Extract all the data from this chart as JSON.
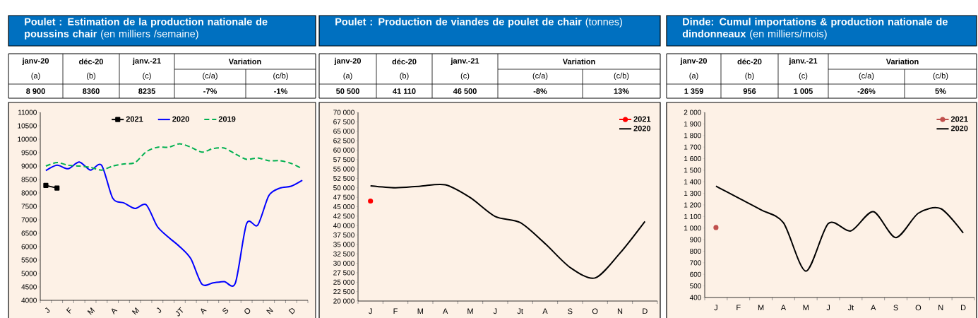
{
  "chart_data": [
    {
      "type": "line",
      "title": "**Poulet : Estimation de la production nationale de poussins chair** (en milliers /semaine)",
      "annotations": [
        "janv-20",
        "(a)",
        "8 900",
        "déc-20",
        "(b)",
        "8360",
        "janv.-21",
        "(c)",
        "8235",
        "Variation",
        "(c/a)",
        "-7%",
        "(c/b)",
        "-1%"
      ],
      "categories": [
        "J",
        null,
        "F",
        null,
        "M",
        null,
        "A",
        null,
        "M",
        null,
        "J",
        null,
        "JT",
        null,
        "A",
        null,
        "S",
        null,
        "O",
        null,
        "N",
        null,
        "D",
        null
      ],
      "ylim": [
        4000,
        11000
      ],
      "yticks": [
        4000,
        4500,
        5000,
        5500,
        6000,
        6500,
        7000,
        7500,
        8000,
        8500,
        9000,
        9500,
        10000,
        10500,
        11000
      ],
      "legend": "top",
      "series": [
        {
          "name": "2021",
          "color": "#000000",
          "marker": "square",
          "line_style": "solid",
          "values": [
            8280,
            8180,
            null,
            null,
            null,
            null,
            null,
            null,
            null,
            null,
            null,
            null,
            null,
            null,
            null,
            null,
            null,
            null,
            null,
            null,
            null,
            null,
            null,
            null
          ]
        },
        {
          "name": "2020",
          "color": "#0000ff",
          "line_style": "solid",
          "values": [
            8830,
            9030,
            8900,
            9150,
            8850,
            9030,
            7800,
            7630,
            7420,
            7560,
            6750,
            6350,
            6000,
            5550,
            4600,
            4650,
            4700,
            4650,
            6850,
            6800,
            7900,
            8180,
            8250,
            8470
          ]
        },
        {
          "name": "2019",
          "color": "#00b050",
          "line_style": "dashed",
          "values": [
            9000,
            9130,
            9030,
            9000,
            8950,
            8850,
            9000,
            9080,
            9130,
            9530,
            9700,
            9700,
            9830,
            9700,
            9520,
            9650,
            9670,
            9450,
            9250,
            9300,
            9200,
            9200,
            9100,
            8900
          ]
        }
      ]
    },
    {
      "type": "line",
      "title": "**Poulet : Production de viandes de poulet de chair** (tonnes)",
      "annotations": [
        "janv-20",
        "(a)",
        "50 500",
        "déc-20",
        "(b)",
        "41 110",
        "janv.-21",
        "(c)",
        "46 500",
        "Variation",
        "(c/a)",
        "-8%",
        "(c/b)",
        "13%"
      ],
      "categories": [
        "J",
        "F",
        "M",
        "A",
        "M",
        "J",
        "Jt",
        "A",
        "S",
        "O",
        "N",
        "D"
      ],
      "ylim": [
        20000,
        70000
      ],
      "yticks": [
        {
          "value": 20000,
          "label": "20 000"
        },
        {
          "value": 22500,
          "label": "22 500"
        },
        {
          "value": 25000,
          "label": "25 000"
        },
        {
          "value": 27500,
          "label": "27 500"
        },
        {
          "value": 30000,
          "label": "30 000"
        },
        {
          "value": 32500,
          "label": "32 500"
        },
        {
          "value": 35000,
          "label": "35 000"
        },
        {
          "value": 37500,
          "label": "37 500"
        },
        {
          "value": 40000,
          "label": "40 000"
        },
        {
          "value": 42500,
          "label": "42 500"
        },
        {
          "value": 45000,
          "label": "45 000"
        },
        {
          "value": 47500,
          "label": "47 500"
        },
        {
          "value": 50000,
          "label": "50 000"
        },
        {
          "value": 52500,
          "label": "52 500"
        },
        {
          "value": 55000,
          "label": "55 000"
        },
        {
          "value": 57500,
          "label": "57 500"
        },
        {
          "value": 60000,
          "label": "60 000"
        },
        {
          "value": 62500,
          "label": "62 500"
        },
        {
          "value": 65000,
          "label": "65 000"
        },
        {
          "value": 67500,
          "label": "67 500"
        },
        {
          "value": 70000,
          "label": "70 000"
        }
      ],
      "legend": "top right",
      "series": [
        {
          "name": "2021",
          "color": "#ff0000",
          "marker": "circle",
          "line_style": "dashed",
          "values": [
            46500,
            null,
            null,
            null,
            null,
            null,
            null,
            null,
            null,
            null,
            null,
            null
          ]
        },
        {
          "name": "2020",
          "color": "#000000",
          "line_style": "solid",
          "values": [
            50500,
            50000,
            50450,
            50800,
            47400,
            42400,
            40800,
            35200,
            28900,
            26100,
            32700,
            41100
          ]
        }
      ]
    },
    {
      "type": "line",
      "title": "**Dinde: Cumul importations & production nationale de dindonneaux** (en milliers/mois)",
      "annotations": [
        "janv-20",
        "(a)",
        "1 359",
        "déc-20",
        "(b)",
        "956",
        "janv.-21",
        "(c)",
        "1 005",
        "Variation",
        "(c/a)",
        "-26%",
        "(c/b)",
        "5%"
      ],
      "categories": [
        "J",
        "F",
        "M",
        "A",
        "M",
        "J",
        "Jt",
        "A",
        "S",
        "O",
        "N",
        "D"
      ],
      "ylim": [
        400,
        2000
      ],
      "yticks": [
        400,
        500,
        600,
        700,
        800,
        900,
        {
          "value": 1000,
          "label": "1 000"
        },
        {
          "value": 1100,
          "label": "1 100"
        },
        {
          "value": 1200,
          "label": "1 200"
        },
        {
          "value": 1300,
          "label": "1 300"
        },
        {
          "value": 1400,
          "label": "1 400"
        },
        {
          "value": 1500,
          "label": "1 500"
        },
        {
          "value": 1600,
          "label": "1 600"
        },
        {
          "value": 1700,
          "label": "1 700"
        },
        {
          "value": 1800,
          "label": "1 800"
        },
        {
          "value": 1900,
          "label": "1 900"
        },
        {
          "value": 2000,
          "label": "2 000"
        }
      ],
      "legend": "top right",
      "series": [
        {
          "name": "2021",
          "color": "#c0504d",
          "marker": "circle",
          "line_style": "dashed",
          "values": [
            1005,
            null,
            null,
            null,
            null,
            null,
            null,
            null,
            null,
            null,
            null,
            null
          ]
        },
        {
          "name": "2020",
          "color": "#000000",
          "line_style": "solid",
          "values": [
            1362,
            1260,
            1158,
            1046,
            628,
            1040,
            975,
            1142,
            918,
            1128,
            1168,
            958
          ]
        }
      ]
    }
  ]
}
